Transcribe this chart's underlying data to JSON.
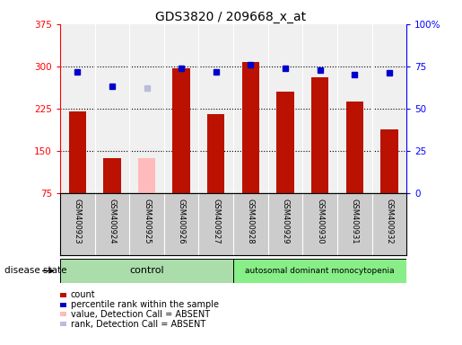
{
  "title": "GDS3820 / 209668_x_at",
  "samples": [
    "GSM400923",
    "GSM400924",
    "GSM400925",
    "GSM400926",
    "GSM400927",
    "GSM400928",
    "GSM400929",
    "GSM400930",
    "GSM400931",
    "GSM400932"
  ],
  "count_values": [
    220,
    138,
    null,
    297,
    215,
    308,
    255,
    280,
    238,
    188
  ],
  "count_absent": [
    null,
    null,
    138,
    null,
    null,
    null,
    null,
    null,
    null,
    null
  ],
  "rank_values": [
    72,
    63,
    null,
    74,
    72,
    76,
    74,
    73,
    70,
    71
  ],
  "rank_absent": [
    null,
    null,
    62,
    null,
    null,
    null,
    null,
    null,
    null,
    null
  ],
  "ylim_left": [
    75,
    375
  ],
  "ylim_right": [
    0,
    100
  ],
  "yticks_left": [
    75,
    150,
    225,
    300,
    375
  ],
  "yticks_right": [
    0,
    25,
    50,
    75,
    100
  ],
  "ytick_labels_right": [
    "0",
    "25",
    "50",
    "75",
    "100%"
  ],
  "control_label": "control",
  "disease_label": "autosomal dominant monocytopenia",
  "disease_state_label": "disease state",
  "bar_color": "#bb1100",
  "bar_absent_color": "#ffbbbb",
  "rank_color": "#0000cc",
  "rank_absent_color": "#bbbbdd",
  "plot_bg": "#f0f0f0",
  "label_bg": "#cccccc",
  "control_bg": "#aaddaa",
  "disease_bg": "#88ee88",
  "legend_items": [
    {
      "color": "#bb1100",
      "label": "count"
    },
    {
      "color": "#0000cc",
      "label": "percentile rank within the sample"
    },
    {
      "color": "#ffbbbb",
      "label": "value, Detection Call = ABSENT"
    },
    {
      "color": "#bbbbdd",
      "label": "rank, Detection Call = ABSENT"
    }
  ]
}
